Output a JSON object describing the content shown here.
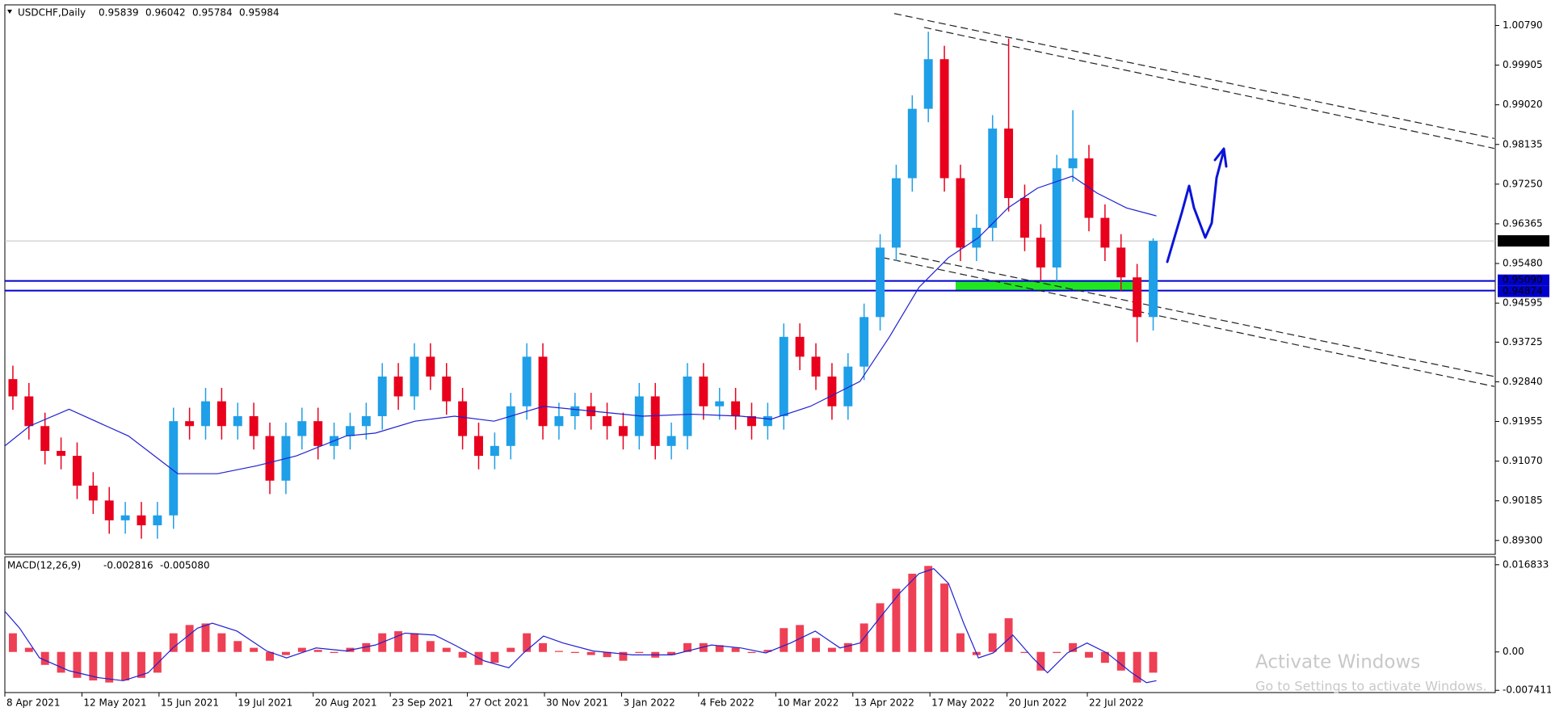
{
  "chart_data": [
    {
      "type": "candlestick",
      "title": "USDCHF,Daily",
      "header_values": [
        0.95839,
        0.96042,
        0.95784,
        0.95984
      ],
      "x": [
        2.5,
        7.5,
        12.5,
        17.5,
        22.5,
        27.5,
        32.5,
        37.5,
        42.5,
        47.5,
        52.5,
        57.5,
        62.5,
        67.5,
        72.5,
        77.5,
        82.5,
        87.5,
        92.5,
        97.5,
        102.5,
        107.5,
        112.5,
        117.5,
        122.5,
        127.5,
        132.5,
        137.5,
        142.5,
        147.5,
        152.5,
        157.5,
        162.5,
        167.5,
        172.5,
        177.5,
        182.5,
        187.5,
        192.5,
        197.5,
        202.5,
        207.5,
        212.5,
        217.5,
        222.5,
        227.5,
        232.5,
        237.5,
        242.5,
        247.5,
        252.5,
        257.5,
        262.5,
        267.5,
        272.5,
        277.5,
        282.5,
        287.5,
        292.5,
        297.5,
        302.5,
        307.5,
        312.5,
        317.5,
        322.5,
        327.5,
        332.5,
        337.5,
        342.5,
        347.5,
        352.5,
        357.5
      ],
      "ohlc": [
        [
          0.929,
          0.932,
          0.92215,
          0.92515
        ],
        [
          0.92515,
          0.92815,
          0.91552,
          0.91852
        ],
        [
          0.91852,
          0.92152,
          0.90998,
          0.91298
        ],
        [
          0.91298,
          0.91598,
          0.90888,
          0.91188
        ],
        [
          0.91188,
          0.91488,
          0.90224,
          0.90524
        ],
        [
          0.90524,
          0.90824,
          0.89892,
          0.90192
        ],
        [
          0.90192,
          0.90492,
          0.8945,
          0.8975
        ],
        [
          0.8975,
          0.9016,
          0.8945,
          0.8986
        ],
        [
          0.8986,
          0.9016,
          0.89339,
          0.89639
        ],
        [
          0.89639,
          0.9016,
          0.89339,
          0.8986
        ],
        [
          0.8986,
          0.92262,
          0.8956,
          0.91962
        ],
        [
          0.91962,
          0.92262,
          0.91552,
          0.91852
        ],
        [
          0.91852,
          0.92705,
          0.91552,
          0.92405
        ],
        [
          0.92405,
          0.92705,
          0.91552,
          0.91852
        ],
        [
          0.91852,
          0.92373,
          0.91552,
          0.92073
        ],
        [
          0.92073,
          0.92373,
          0.9133,
          0.9163
        ],
        [
          0.9163,
          0.9193,
          0.90335,
          0.90635
        ],
        [
          0.90635,
          0.9193,
          0.90335,
          0.9163
        ],
        [
          0.9163,
          0.92262,
          0.9133,
          0.91962
        ],
        [
          0.91962,
          0.92262,
          0.91109,
          0.91409
        ],
        [
          0.91409,
          0.9193,
          0.91109,
          0.9163
        ],
        [
          0.9163,
          0.92152,
          0.9133,
          0.91852
        ],
        [
          0.91852,
          0.92373,
          0.91552,
          0.92073
        ],
        [
          0.92073,
          0.93258,
          0.91773,
          0.92958
        ],
        [
          0.92958,
          0.93258,
          0.92215,
          0.92515
        ],
        [
          0.92515,
          0.937,
          0.92215,
          0.934
        ],
        [
          0.934,
          0.937,
          0.92658,
          0.92958
        ],
        [
          0.92958,
          0.93258,
          0.92105,
          0.92405
        ],
        [
          0.92405,
          0.92705,
          0.9133,
          0.9163
        ],
        [
          0.9163,
          0.9193,
          0.90888,
          0.91188
        ],
        [
          0.91188,
          0.91709,
          0.90888,
          0.91409
        ],
        [
          0.91409,
          0.92594,
          0.91109,
          0.92294
        ],
        [
          0.92294,
          0.937,
          0.91994,
          0.934
        ],
        [
          0.934,
          0.937,
          0.91552,
          0.91852
        ],
        [
          0.91852,
          0.92373,
          0.91552,
          0.92073
        ],
        [
          0.92073,
          0.92594,
          0.91773,
          0.92294
        ],
        [
          0.92294,
          0.92594,
          0.91773,
          0.92073
        ],
        [
          0.92073,
          0.92373,
          0.91552,
          0.91852
        ],
        [
          0.91852,
          0.92152,
          0.9133,
          0.9163
        ],
        [
          0.9163,
          0.92815,
          0.9133,
          0.92515
        ],
        [
          0.92515,
          0.92815,
          0.91109,
          0.91409
        ],
        [
          0.91409,
          0.9193,
          0.91109,
          0.9163
        ],
        [
          0.9163,
          0.93258,
          0.9133,
          0.92958
        ],
        [
          0.92958,
          0.93258,
          0.91994,
          0.92294
        ],
        [
          0.92294,
          0.92705,
          0.91994,
          0.92405
        ],
        [
          0.92405,
          0.92705,
          0.91773,
          0.92073
        ],
        [
          0.92073,
          0.92373,
          0.91552,
          0.91852
        ],
        [
          0.91852,
          0.92373,
          0.91552,
          0.92073
        ],
        [
          0.92073,
          0.94143,
          0.91773,
          0.93843
        ],
        [
          0.93843,
          0.94143,
          0.931,
          0.934
        ],
        [
          0.934,
          0.937,
          0.92658,
          0.92958
        ],
        [
          0.92958,
          0.93258,
          0.91994,
          0.92294
        ],
        [
          0.92294,
          0.93479,
          0.91994,
          0.93179
        ],
        [
          0.93179,
          0.94585,
          0.92879,
          0.94285
        ],
        [
          0.94285,
          0.96134,
          0.93985,
          0.95834
        ],
        [
          0.95834,
          0.97683,
          0.95534,
          0.97383
        ],
        [
          0.97383,
          0.99231,
          0.97083,
          0.98931
        ],
        [
          0.98931,
          1.0065,
          0.98631,
          1.00038
        ],
        [
          1.00038,
          1.00338,
          0.97083,
          0.97383
        ],
        [
          0.97383,
          0.97683,
          0.95534,
          0.95834
        ],
        [
          0.95834,
          0.96576,
          0.95534,
          0.96276
        ],
        [
          0.96276,
          0.98789,
          0.95976,
          0.98489
        ],
        [
          0.98489,
          1.005,
          0.9664,
          0.9694
        ],
        [
          0.9694,
          0.9724,
          0.95755,
          0.96055
        ],
        [
          0.96055,
          0.96355,
          0.95091,
          0.95391
        ],
        [
          0.95391,
          0.97904,
          0.95091,
          0.97604
        ],
        [
          0.97604,
          0.989,
          0.97304,
          0.97825
        ],
        [
          0.97825,
          0.98125,
          0.96198,
          0.96498
        ],
        [
          0.96498,
          0.96798,
          0.95534,
          0.95834
        ],
        [
          0.95834,
          0.96134,
          0.9487,
          0.9517
        ],
        [
          0.9517,
          0.9547,
          0.93725,
          0.94285
        ],
        [
          0.94285,
          0.96042,
          0.93985,
          0.95984
        ]
      ],
      "up_color": "#1e9fe8",
      "down_color": "#e8001c",
      "ma": {
        "color": "#2020d0",
        "x": [
          0,
          7.7,
          20,
          38.5,
          53.8,
          66.2,
          78.5,
          90.8,
          106.2,
          115.4,
          127.7,
          140,
          152.3,
          167.7,
          183.1,
          198.5,
          213.8,
          229.2,
          238.5,
          250.8,
          266.2,
          275.4,
          284.6,
          293.8,
          303.1,
          312.3,
          321.5,
          332.3,
          340,
          349.2,
          358.5
        ],
        "values": [
          0.91409,
          0.91852,
          0.92228,
          0.9163,
          0.9079,
          0.9079,
          0.90967,
          0.91188,
          0.9163,
          0.91697,
          0.91962,
          0.92073,
          0.91962,
          0.92294,
          0.92184,
          0.92073,
          0.92117,
          0.92073,
          0.92006,
          0.92294,
          0.92847,
          0.93843,
          0.94949,
          0.95613,
          0.96055,
          0.96719,
          0.97162,
          0.97427,
          0.97051,
          0.96719,
          0.96542
        ]
      },
      "xlim": [
        0,
        464
      ],
      "ylim": [
        0.8899,
        1.0125
      ],
      "yticks": [
        {
          "value": 1.0079,
          "label": "1.00790"
        },
        {
          "value": 0.99905,
          "label": "0.99905"
        },
        {
          "value": 0.9902,
          "label": "0.99020"
        },
        {
          "value": 0.98135,
          "label": "0.98135"
        },
        {
          "value": 0.9725,
          "label": "0.97250"
        },
        {
          "value": 0.96365,
          "label": "0.96365"
        },
        {
          "value": 0.9548,
          "label": "0.95480"
        },
        {
          "value": 0.94595,
          "label": "0.94595"
        },
        {
          "value": 0.93725,
          "label": "0.93725"
        },
        {
          "value": 0.9284,
          "label": "0.92840"
        },
        {
          "value": 0.91955,
          "label": "0.91955"
        },
        {
          "value": 0.9107,
          "label": "0.91070"
        },
        {
          "value": 0.90185,
          "label": "0.90185"
        },
        {
          "value": 0.893,
          "label": "0.89300"
        }
      ],
      "xticks": [
        {
          "value": 0,
          "label": "8 Apr 2021"
        },
        {
          "value": 24,
          "label": "12 May 2021"
        },
        {
          "value": 48,
          "label": "15 Jun 2021"
        },
        {
          "value": 72,
          "label": "19 Jul 2021"
        },
        {
          "value": 96,
          "label": "20 Aug 2021"
        },
        {
          "value": 120,
          "label": "23 Sep 2021"
        },
        {
          "value": 144,
          "label": "27 Oct 2021"
        },
        {
          "value": 168,
          "label": "30 Nov 2021"
        },
        {
          "value": 192,
          "label": "3 Jan 2022"
        },
        {
          "value": 216,
          "label": "4 Feb 2022"
        },
        {
          "value": 240,
          "label": "10 Mar 2022"
        },
        {
          "value": 264,
          "label": "13 Apr 2022"
        },
        {
          "value": 288,
          "label": "17 May 2022"
        },
        {
          "value": 312,
          "label": "20 Jun 2022"
        },
        {
          "value": 337,
          "label": "22 Jul 2022"
        }
      ],
      "current_price": 0.95984,
      "levels": [
        {
          "value": 0.9509,
          "label": "0.95090"
        },
        {
          "value": 0.94874,
          "label": "0.94874"
        }
      ],
      "level_color": "#0000cc",
      "zone_x": [
        296,
        352
      ],
      "zone_color": "#22e522",
      "trendlines": [
        [
          276.9,
          1.01056,
          463.7,
          0.98268
        ],
        [
          286.2,
          1.00746,
          463.7,
          0.98047
        ],
        [
          278.5,
          0.95701,
          463.7,
          0.92958
        ],
        [
          273.2,
          0.95613,
          463.7,
          0.92736
        ]
      ]
    },
    {
      "type": "macd",
      "title": "MACD(12,26,9)",
      "header_values": [
        -0.002816,
        {
          "value": -0.00508,
          "label": "-0.005080"
        }
      ],
      "x": [
        2.5,
        7.5,
        12.5,
        17.5,
        22.5,
        27.5,
        32.5,
        37.5,
        42.5,
        47.5,
        52.5,
        57.5,
        62.5,
        67.5,
        72.5,
        77.5,
        82.5,
        87.5,
        92.5,
        97.5,
        102.5,
        107.5,
        112.5,
        117.5,
        122.5,
        127.5,
        132.5,
        137.5,
        142.5,
        147.5,
        152.5,
        157.5,
        162.5,
        167.5,
        172.5,
        177.5,
        182.5,
        187.5,
        192.5,
        197.5,
        202.5,
        207.5,
        212.5,
        217.5,
        222.5,
        227.5,
        232.5,
        237.5,
        242.5,
        247.5,
        252.5,
        257.5,
        262.5,
        267.5,
        272.5,
        277.5,
        282.5,
        287.5,
        292.5,
        297.5,
        302.5,
        307.5,
        312.5,
        317.5,
        322.5,
        327.5,
        332.5,
        337.5,
        342.5,
        347.5,
        352.5,
        357.5
      ],
      "histogram": [
        0.0036,
        0.0008,
        -0.0025,
        -0.004,
        -0.005,
        -0.0055,
        -0.0059,
        -0.0055,
        -0.005,
        -0.004,
        0.0036,
        0.0052,
        0.0055,
        0.0036,
        0.0021,
        0.0008,
        -0.0017,
        -0.0006,
        0.0008,
        0.0004,
        -0.0002,
        0.0008,
        0.0017,
        0.0036,
        0.004,
        0.0036,
        0.0021,
        0.0008,
        -0.0011,
        -0.0025,
        -0.0021,
        0.0008,
        0.0036,
        0.0017,
        0.0002,
        -0.0002,
        -0.0006,
        -0.001,
        -0.0017,
        -0.0002,
        -0.0011,
        -0.0006,
        0.0017,
        0.0017,
        0.0013,
        0.0008,
        -0.0002,
        0.0004,
        0.0046,
        0.0052,
        0.0027,
        0.0008,
        0.0017,
        0.0055,
        0.0094,
        0.0122,
        0.0151,
        0.0166,
        0.0132,
        0.0036,
        -0.0006,
        0.0036,
        0.0065,
        -0.0002,
        -0.0036,
        -0.0002,
        0.0017,
        -0.0011,
        -0.0021,
        -0.0036,
        -0.0059,
        -0.004
      ],
      "histogram_color": "#e8001c",
      "signal": {
        "color": "#2020d0",
        "x": [
          0,
          4.6,
          10.8,
          20,
          29.2,
          36.9,
          44.6,
          52.3,
          60,
          64.6,
          72.3,
          81.5,
          87.7,
          96.9,
          106.2,
          115.4,
          124.6,
          133.8,
          140,
          149.2,
          156.9,
          161.5,
          167.7,
          173.8,
          183.1,
          195.4,
          207.7,
          220,
          229.2,
          236.9,
          244.6,
          252.3,
          260,
          266.2,
          272.3,
          278.5,
          284.6,
          289.2,
          293.8,
          298.5,
          303.1,
          307.7,
          313.8,
          320,
          324.6,
          330.8,
          336.9,
          343.1,
          350.8,
          355.4,
          358.5
        ],
        "values": [
          0.00784,
          0.00459,
          -0.00115,
          -0.00363,
          -0.00497,
          -0.00555,
          -0.00402,
          0.00077,
          0.00459,
          0.00555,
          0.00402,
          0.00019,
          -0.00115,
          0.00077,
          0.00019,
          0.00134,
          0.00363,
          0.00325,
          0.00134,
          -0.00172,
          -0.00306,
          -0.00019,
          0.00306,
          0.00172,
          0.00019,
          -0.00057,
          -0.00057,
          0.00134,
          0.00077,
          -0.00019,
          0.00172,
          0.00402,
          0.00077,
          0.00172,
          0.0065,
          0.01129,
          0.01511,
          0.01607,
          0.0132,
          0.00555,
          -0.00115,
          -0.00019,
          0.00325,
          -0.00115,
          -0.00402,
          -0.00019,
          0.00172,
          -0.00019,
          -0.00402,
          -0.00593,
          -0.00555
        ]
      },
      "xlim": [
        0,
        464
      ],
      "ylim": [
        -0.00784,
        0.018363
      ],
      "yticks": [
        0.016833,
        {
          "value": 0,
          "label": "0.00"
        },
        -0.007411
      ]
    }
  ],
  "watermark": {
    "title": "Activate Windows",
    "subtitle": "Go to Settings to activate Windows."
  }
}
